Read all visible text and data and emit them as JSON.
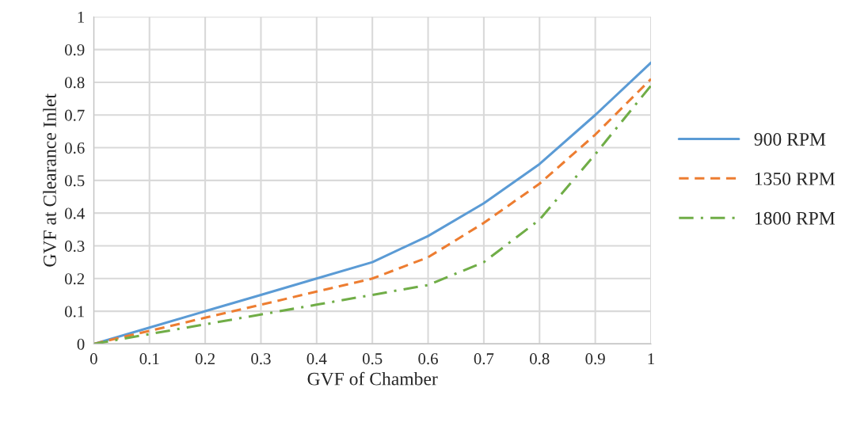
{
  "chart_data": {
    "type": "line",
    "xlabel": "GVF of Chamber",
    "ylabel": "GVF at Clearance Inlet",
    "x": [
      0,
      0.1,
      0.2,
      0.3,
      0.4,
      0.5,
      0.6,
      0.7,
      0.8,
      0.9,
      1
    ],
    "series": [
      {
        "name": "900 RPM",
        "color": "#5b9bd5",
        "line_style": "solid",
        "values": [
          0,
          0.05,
          0.1,
          0.15,
          0.2,
          0.25,
          0.33,
          0.43,
          0.55,
          0.7,
          0.86
        ]
      },
      {
        "name": "1350 RPM",
        "color": "#ed7d31",
        "line_style": "dashed",
        "values": [
          0,
          0.04,
          0.08,
          0.12,
          0.16,
          0.2,
          0.265,
          0.37,
          0.49,
          0.64,
          0.81
        ]
      },
      {
        "name": "1800 RPM",
        "color": "#70ad47",
        "line_style": "dashdot",
        "values": [
          0,
          0.03,
          0.06,
          0.09,
          0.12,
          0.15,
          0.18,
          0.25,
          0.38,
          0.58,
          0.79
        ]
      }
    ],
    "xlim": [
      0,
      1
    ],
    "ylim": [
      0,
      1
    ],
    "xticks": [
      0,
      0.1,
      0.2,
      0.3,
      0.4,
      0.5,
      0.6,
      0.7,
      0.8,
      0.9,
      1
    ],
    "yticks": [
      0,
      0.1,
      0.2,
      0.3,
      0.4,
      0.5,
      0.6,
      0.7,
      0.8,
      0.9,
      1
    ],
    "grid": true,
    "legend": "right",
    "marker": "none"
  }
}
